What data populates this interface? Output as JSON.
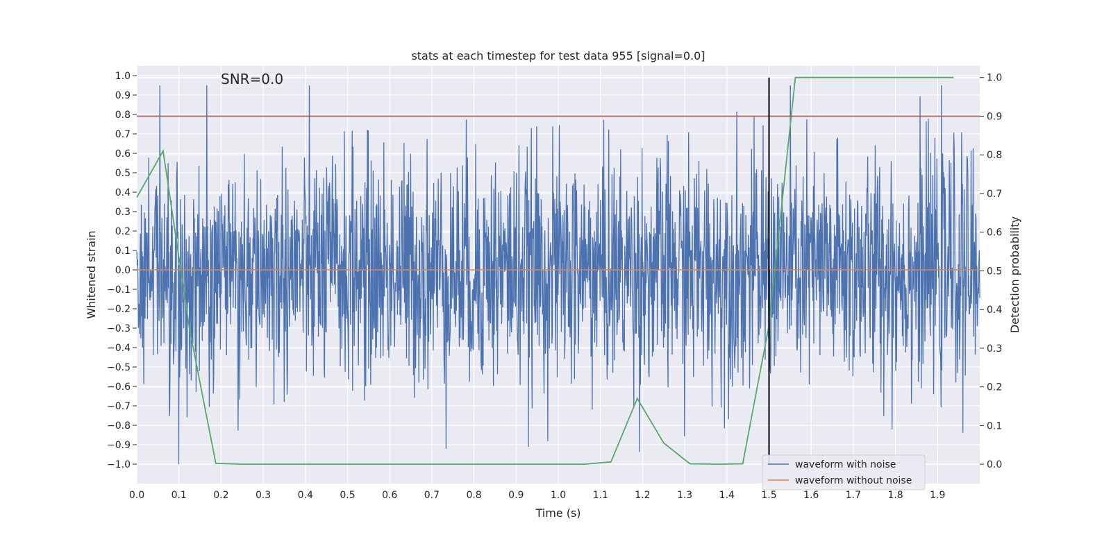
{
  "chart_data": {
    "type": "line",
    "title": "stats at each timestep for test data 955 [signal=0.0]",
    "xlabel": "Time (s)",
    "ylabel": "Whitened strain",
    "y2label": "Detection probability",
    "annotation": "SNR=0.0",
    "xlim": [
      0.0,
      2.0
    ],
    "ylim": [
      -1.1,
      1.05
    ],
    "y2lim": [
      -0.05,
      1.03
    ],
    "xticks": [
      "0.0",
      "0.1",
      "0.2",
      "0.3",
      "0.4",
      "0.5",
      "0.6",
      "0.7",
      "0.8",
      "0.9",
      "1.0",
      "1.1",
      "1.2",
      "1.3",
      "1.4",
      "1.5",
      "1.6",
      "1.7",
      "1.8",
      "1.9"
    ],
    "yticks": [
      "1.0",
      "0.9",
      "0.8",
      "0.7",
      "0.6",
      "0.5",
      "0.4",
      "0.3",
      "0.2",
      "0.1",
      "0.0",
      "-0.1",
      "-0.2",
      "-0.3",
      "-0.4",
      "-0.5",
      "-0.6",
      "-0.7",
      "-0.8",
      "-0.9",
      "-1.0"
    ],
    "y2ticks": [
      "1.0",
      "0.9",
      "0.8",
      "0.7",
      "0.6",
      "0.5",
      "0.4",
      "0.3",
      "0.2",
      "0.1",
      "0.0"
    ],
    "grid": true,
    "legend_position": "lower-right",
    "series": [
      {
        "name": "waveform with noise",
        "color": "#4c72b0",
        "style": "noise",
        "x_range": [
          0.0,
          2.0
        ],
        "amplitude_range": [
          -1.0,
          0.95
        ],
        "samples": 2048
      },
      {
        "name": "waveform without noise",
        "color": "#dd8452",
        "x": [
          0.0,
          2.0
        ],
        "y": [
          0.0,
          0.0
        ]
      }
    ],
    "detection_probability": {
      "color": "#55a868",
      "x": [
        0.0,
        0.0625,
        0.125,
        0.1875,
        0.25,
        0.3125,
        0.375,
        0.4375,
        0.5,
        0.5625,
        0.625,
        0.6875,
        0.75,
        0.8125,
        0.875,
        0.9375,
        1.0,
        1.0625,
        1.125,
        1.1875,
        1.25,
        1.3125,
        1.375,
        1.4375,
        1.5,
        1.5625,
        1.625,
        1.6875,
        1.75,
        1.8125,
        1.875,
        1.9375
      ],
      "y": [
        0.69,
        0.81,
        0.35,
        0.002,
        0.0,
        0.0,
        0.0,
        0.0,
        0.0,
        0.0,
        0.0,
        0.0,
        0.0,
        0.0,
        0.0,
        0.0,
        0.0,
        0.0,
        0.006,
        0.17,
        0.055,
        0.001,
        0.0,
        0.001,
        0.36,
        1.0,
        1.0,
        1.0,
        1.0,
        1.0,
        1.0,
        1.0
      ]
    },
    "threshold": {
      "color": "#c44e52",
      "value": 0.9
    },
    "marker_line": {
      "color": "#000000",
      "x": 1.5,
      "y_range": [
        0.0,
        1.0
      ]
    }
  }
}
